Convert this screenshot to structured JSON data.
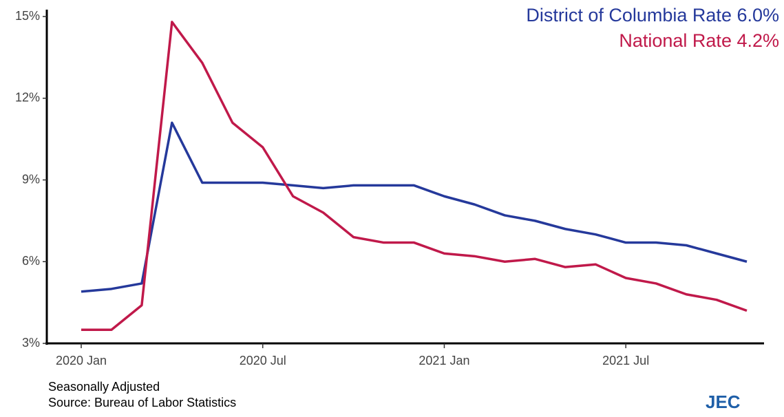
{
  "chart_data": {
    "type": "line",
    "x": [
      "2020-01",
      "2020-02",
      "2020-03",
      "2020-04",
      "2020-05",
      "2020-06",
      "2020-07",
      "2020-08",
      "2020-09",
      "2020-10",
      "2020-11",
      "2020-12",
      "2021-01",
      "2021-02",
      "2021-03",
      "2021-04",
      "2021-05",
      "2021-06",
      "2021-07",
      "2021-08",
      "2021-09",
      "2021-10",
      "2021-11"
    ],
    "series": [
      {
        "name": "District of Columbia Rate 6.0%",
        "color": "#25399b",
        "values": [
          4.9,
          5.0,
          5.2,
          11.1,
          8.9,
          8.9,
          8.9,
          8.8,
          8.7,
          8.8,
          8.8,
          8.8,
          8.4,
          8.1,
          7.7,
          7.5,
          7.2,
          7.0,
          6.7,
          6.7,
          6.6,
          6.3,
          6.0
        ]
      },
      {
        "name": "National Rate 4.2%",
        "color": "#c0194a",
        "values": [
          3.5,
          3.5,
          4.4,
          14.8,
          13.3,
          11.1,
          10.2,
          8.4,
          7.8,
          6.9,
          6.7,
          6.7,
          6.3,
          6.2,
          6.0,
          6.1,
          5.8,
          5.9,
          5.4,
          5.2,
          4.8,
          4.6,
          4.2
        ]
      }
    ],
    "ylim": [
      3,
      15
    ],
    "yticks": [
      {
        "value": 3,
        "label": "3%"
      },
      {
        "value": 6,
        "label": "6%"
      },
      {
        "value": 9,
        "label": "9%"
      },
      {
        "value": 12,
        "label": "12%"
      },
      {
        "value": 15,
        "label": "15%"
      }
    ],
    "xticks": [
      {
        "value": "2020-01",
        "label": "2020 Jan"
      },
      {
        "value": "2020-07",
        "label": "2020 Jul"
      },
      {
        "value": "2021-01",
        "label": "2021 Jan"
      },
      {
        "value": "2021-07",
        "label": "2021 Jul"
      }
    ],
    "notes": [
      "Seasonally Adjusted",
      "Source: Bureau of Labor Statistics"
    ],
    "logo": "JEC"
  }
}
